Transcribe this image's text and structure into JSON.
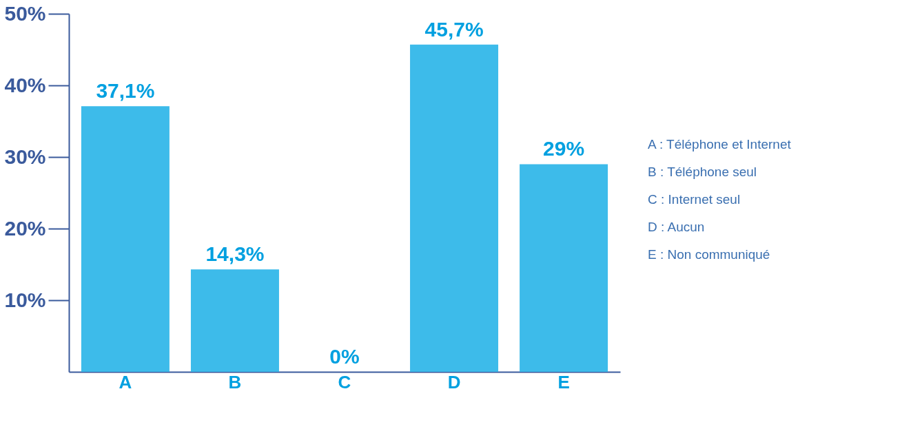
{
  "chart_data": {
    "type": "bar",
    "categories": [
      "A",
      "B",
      "C",
      "D",
      "E"
    ],
    "values": [
      37.1,
      14.3,
      0,
      45.7,
      29
    ],
    "color": "#3dbbea",
    "value_labels": [
      "37,1%",
      "14,3%",
      "0%",
      "45,7%",
      "29%"
    ],
    "ylim": [
      0,
      50
    ],
    "yticks": [
      {
        "value": 10,
        "label": "10%"
      },
      {
        "value": 20,
        "label": "20%"
      },
      {
        "value": 30,
        "label": "30%"
      },
      {
        "value": 40,
        "label": "40%"
      },
      {
        "value": 50,
        "label": "50%"
      }
    ],
    "grid": false,
    "annotations": [
      "A : Téléphone et Internet",
      "B : Téléphone seul",
      "C : Internet seul",
      "D : Aucun",
      "E : Non communiqué"
    ]
  }
}
